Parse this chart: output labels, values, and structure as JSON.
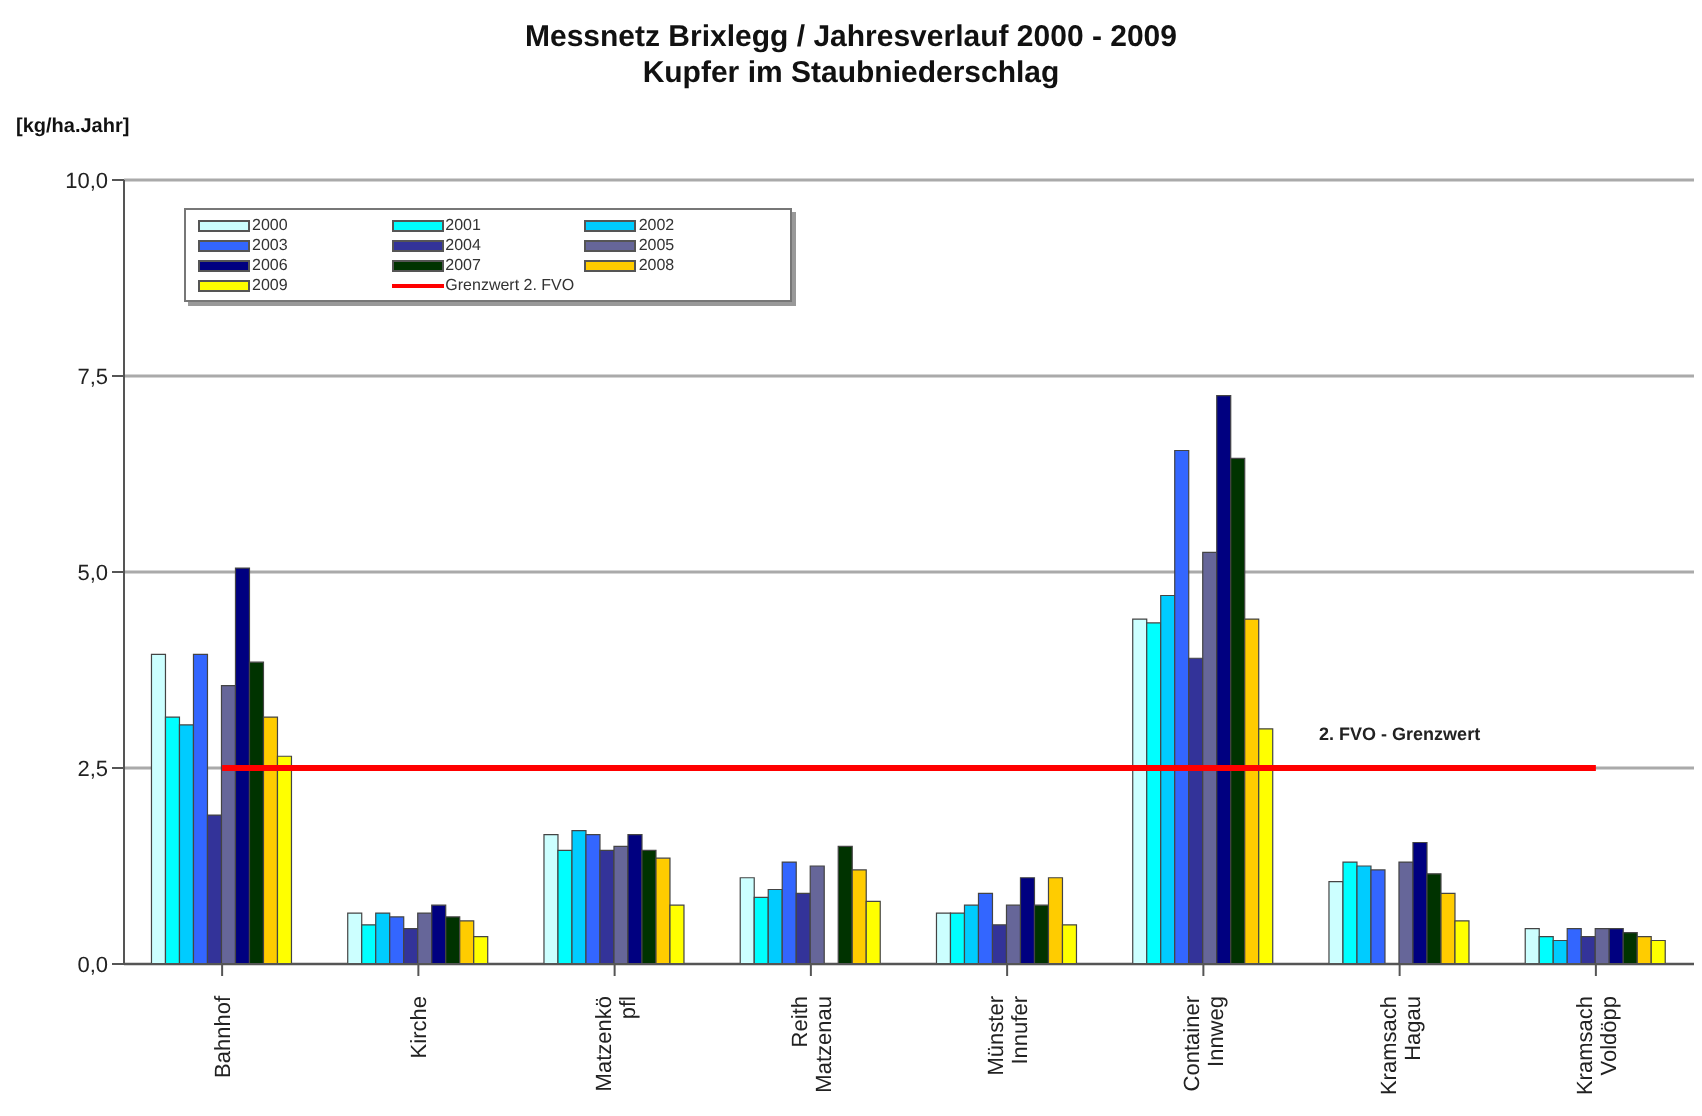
{
  "chart_data": {
    "type": "bar",
    "title": "Messnetz Brixlegg / Jahresverlauf 2000 - 2009",
    "subtitle": "Kupfer im Staubniederschlag",
    "ylabel": "[kg/ha.Jahr]",
    "categories": [
      "Bahnhof",
      "Kirche",
      "Matzenkö\npfl",
      "Reith\nMatzenau",
      "Münster\nInnufer",
      "Container\nInnweg",
      "Kramsach\nHagau",
      "Kramsach\nVoldöpp"
    ],
    "series": [
      {
        "name": "2000",
        "color": "#ccffff",
        "values": [
          3.95,
          0.65,
          1.65,
          1.1,
          0.65,
          4.4,
          1.05,
          0.45
        ]
      },
      {
        "name": "2001",
        "color": "#00ffff",
        "values": [
          3.15,
          0.5,
          1.45,
          0.85,
          0.65,
          4.35,
          1.3,
          0.35
        ]
      },
      {
        "name": "2002",
        "color": "#00ccff",
        "values": [
          3.05,
          0.65,
          1.7,
          0.95,
          0.75,
          4.7,
          1.25,
          0.3
        ]
      },
      {
        "name": "2003",
        "color": "#3366ff",
        "values": [
          3.95,
          0.6,
          1.65,
          1.3,
          0.9,
          6.55,
          1.2,
          0.45
        ]
      },
      {
        "name": "2004",
        "color": "#333399",
        "values": [
          1.9,
          0.45,
          1.45,
          0.9,
          0.5,
          3.9,
          null,
          0.35
        ]
      },
      {
        "name": "2005",
        "color": "#666699",
        "values": [
          3.55,
          0.65,
          1.5,
          1.25,
          0.75,
          5.25,
          1.3,
          0.45
        ]
      },
      {
        "name": "2006",
        "color": "#000080",
        "values": [
          5.05,
          0.75,
          1.65,
          null,
          1.1,
          7.25,
          1.55,
          0.45
        ]
      },
      {
        "name": "2007",
        "color": "#003300",
        "values": [
          3.85,
          0.6,
          1.45,
          1.5,
          0.75,
          6.45,
          1.15,
          0.4
        ]
      },
      {
        "name": "2008",
        "color": "#ffcc00",
        "values": [
          3.15,
          0.55,
          1.35,
          1.2,
          1.1,
          4.4,
          0.9,
          0.35
        ]
      },
      {
        "name": "2009",
        "color": "#ffff00",
        "values": [
          2.65,
          0.35,
          0.75,
          0.8,
          0.5,
          3.0,
          0.55,
          0.3
        ]
      },
      {
        "name": "Grenzwert 2. FVO",
        "type": "line",
        "color": "#ff0000",
        "values": [
          2.5,
          2.5,
          2.5,
          2.5,
          2.5,
          2.5,
          2.5,
          2.5
        ]
      }
    ],
    "annotations": [
      {
        "text": "2. FVO - Grenzwert",
        "x": "Kramsach\nHagau",
        "y": 2.5
      }
    ],
    "ylim": [
      0,
      10
    ],
    "yticks": [
      {
        "value": 0,
        "label": "0,0"
      },
      {
        "value": 2.5,
        "label": "2,5"
      },
      {
        "value": 5,
        "label": "5,0"
      },
      {
        "value": 7.5,
        "label": "7,5"
      },
      {
        "value": 10,
        "label": "10,0"
      }
    ],
    "grid": "y",
    "legend": "top left",
    "marker": "none"
  }
}
